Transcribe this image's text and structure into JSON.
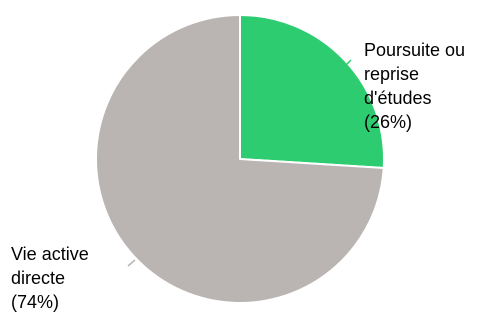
{
  "chart_data": {
    "type": "pie",
    "slices": [
      {
        "label_lines": [
          "Poursuite ou",
          "reprise",
          "d'études",
          "(26%)"
        ],
        "value": 26,
        "color": "#2ecc71",
        "leader_color": "#2ecc71"
      },
      {
        "label_lines": [
          "Vie active",
          "directe",
          "(74%)"
        ],
        "value": 74,
        "color": "#bab5b3",
        "leader_color": "#bab5b3"
      }
    ],
    "start_angle": "12 o'clock",
    "direction": "clockwise",
    "legend": "none"
  }
}
